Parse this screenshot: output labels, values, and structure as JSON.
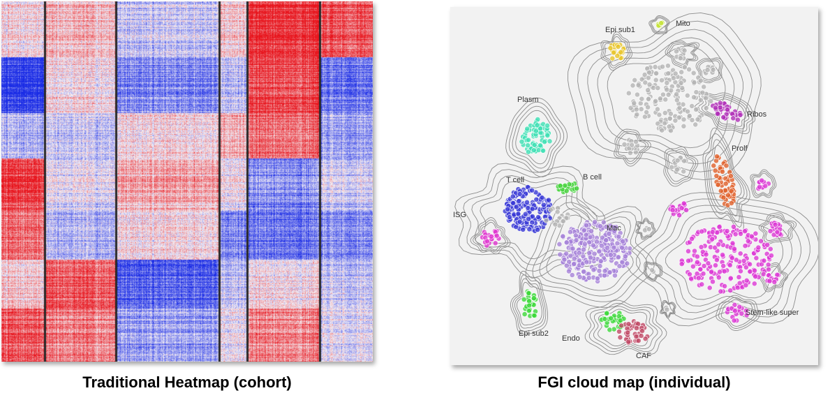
{
  "captions": {
    "left": "Traditional Heatmap (cohort)",
    "right": "FGI cloud map (individual)"
  },
  "heatmap": {
    "colors": {
      "high": "#e8141c",
      "low": "#1a2de6",
      "mid": "#f4f2f6",
      "separator": "#2a2a2a"
    }
  },
  "cloud_map": {
    "background": "#f2f2f2",
    "contour_color": "#8c8c8c",
    "labels": {
      "mito": "Mito",
      "epi_sub1": "Epi sub1",
      "plasm": "Plasm",
      "ribos": "Ribos",
      "prolf": "Prolf",
      "b_cell": "B cell",
      "t_cell": "T cell",
      "isg": "ISG",
      "mac": "Mac",
      "stem_like_super": "Stem-like super",
      "epi_sub2": "Epi sub2",
      "endo": "Endo",
      "caf": "CAF"
    },
    "cluster_colors": {
      "mito": "#c6e43a",
      "epi_sub1": "#e8c62b",
      "plasm": "#3fe0b4",
      "ribos": "#b030b8",
      "prolf": "#e0602a",
      "b_cell": "#44d23a",
      "t_cell": "#3a3ad6",
      "isg": "#e038d0",
      "mac": "#a682d8",
      "stem_like_super": "#dc38d4",
      "epi_sub2": "#3cd83a",
      "endo": "#3cd83a",
      "caf": "#c04a66",
      "unassigned": "#b4b4b4"
    }
  }
}
